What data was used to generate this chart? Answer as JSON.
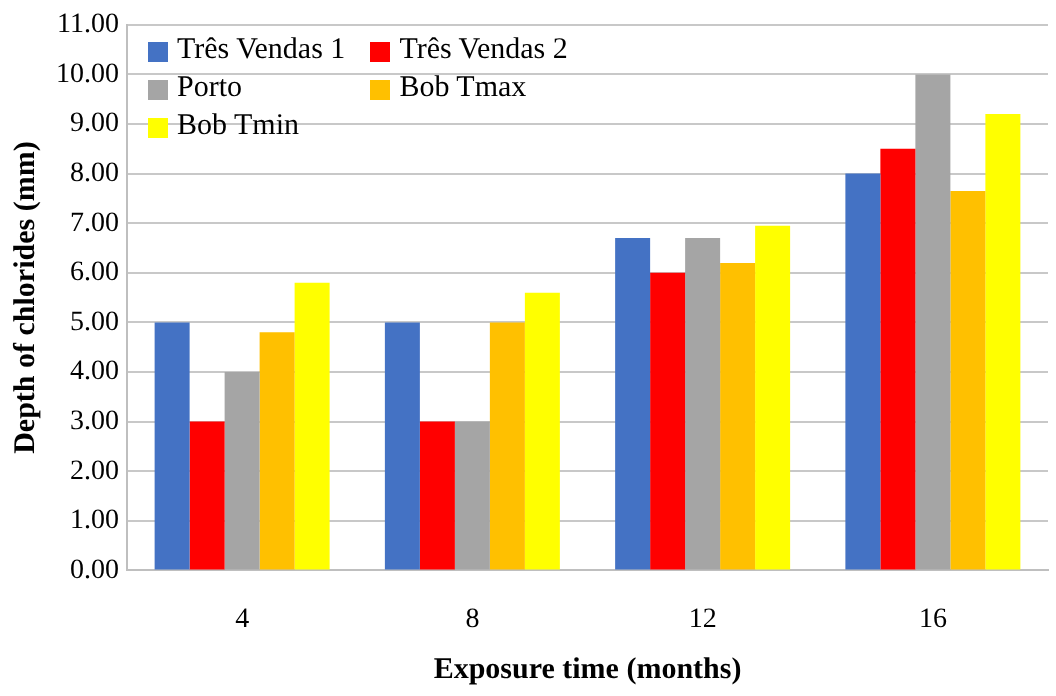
{
  "chart_data": {
    "type": "bar",
    "xlabel": "Exposure time (months)",
    "ylabel": "Depth of chlorides (mm)",
    "categories": [
      "4",
      "8",
      "12",
      "16"
    ],
    "series": [
      {
        "name": "Três Vendas 1",
        "color": "#4472c4",
        "values": [
          5.0,
          5.0,
          6.7,
          8.0
        ]
      },
      {
        "name": "Três Vendas 2",
        "color": "#ff0000",
        "values": [
          3.0,
          3.0,
          6.0,
          8.5
        ]
      },
      {
        "name": "Porto",
        "color": "#a5a5a5",
        "values": [
          4.0,
          3.0,
          6.7,
          10.0
        ]
      },
      {
        "name": "Bob Tmax",
        "color": "#ffc000",
        "values": [
          4.8,
          5.0,
          6.2,
          7.65
        ]
      },
      {
        "name": "Bob Tmin",
        "color": "#ffff00",
        "values": [
          5.8,
          5.6,
          6.95,
          9.2
        ]
      }
    ],
    "ylim": [
      0,
      11
    ],
    "yticks": [
      {
        "value": 0,
        "label": "0.00"
      },
      {
        "value": 1,
        "label": "1.00"
      },
      {
        "value": 2,
        "label": "2.00"
      },
      {
        "value": 3,
        "label": "3.00"
      },
      {
        "value": 4,
        "label": "4.00"
      },
      {
        "value": 5,
        "label": "5.00"
      },
      {
        "value": 6,
        "label": "6.00"
      },
      {
        "value": 7,
        "label": "7.00"
      },
      {
        "value": 8,
        "label": "8.00"
      },
      {
        "value": 9,
        "label": "9.00"
      },
      {
        "value": 10,
        "label": "10.00"
      },
      {
        "value": 11,
        "label": "11.00"
      }
    ],
    "grid": "y",
    "legend": "top left"
  }
}
